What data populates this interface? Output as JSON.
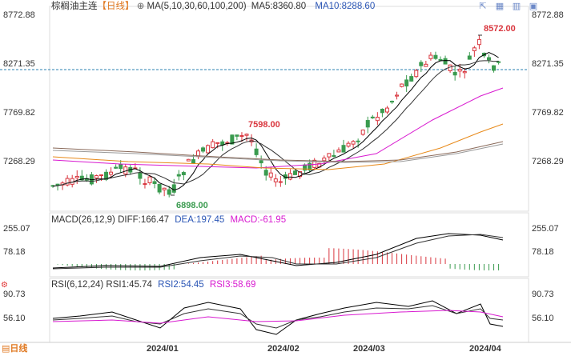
{
  "symbol": "棕榈油主连",
  "period_label": "【日线】",
  "ma": {
    "label": "MA(5,10,30,60,100,200)",
    "ma5": "MA5:8360.80",
    "ma10": "MA10:8288.60"
  },
  "toolbar": {
    "icons": [
      "expand-icon",
      "grid-icon",
      "layout-icon",
      "window-icon"
    ]
  },
  "price_axis": [
    "8772.88",
    "8271.35",
    "7769.82",
    "7268.29"
  ],
  "price_annotations": {
    "high": "8572.00",
    "mid_high": "7598.00",
    "low": "6898.00"
  },
  "macd": {
    "label": "MACD(26,12,9)",
    "diff": "DIFF:166.47",
    "dea": "DEA:197.45",
    "macd": "MACD:-61.95",
    "axis": [
      "255.07",
      "78.18"
    ]
  },
  "rsi": {
    "label": "RSI(6,12,24)",
    "rsi1": "RSI1:45.74",
    "rsi2": "RSI2:54.45",
    "rsi3": "RSI3:58.69",
    "axis": [
      "90.73",
      "56.10"
    ]
  },
  "dates": [
    "2024/01",
    "2024/02",
    "2024/03",
    "2024/04"
  ],
  "footer_tag": "日线",
  "colors": {
    "up": "#d9363e",
    "down": "#3a9b4f",
    "ma5": "#000000",
    "ma10": "#333333",
    "ma30": "#d81ad0",
    "ma60": "#e88a1a",
    "ma100": "#8a6a5a",
    "ma200": "#999999",
    "current": "#2a7fb0"
  }
}
